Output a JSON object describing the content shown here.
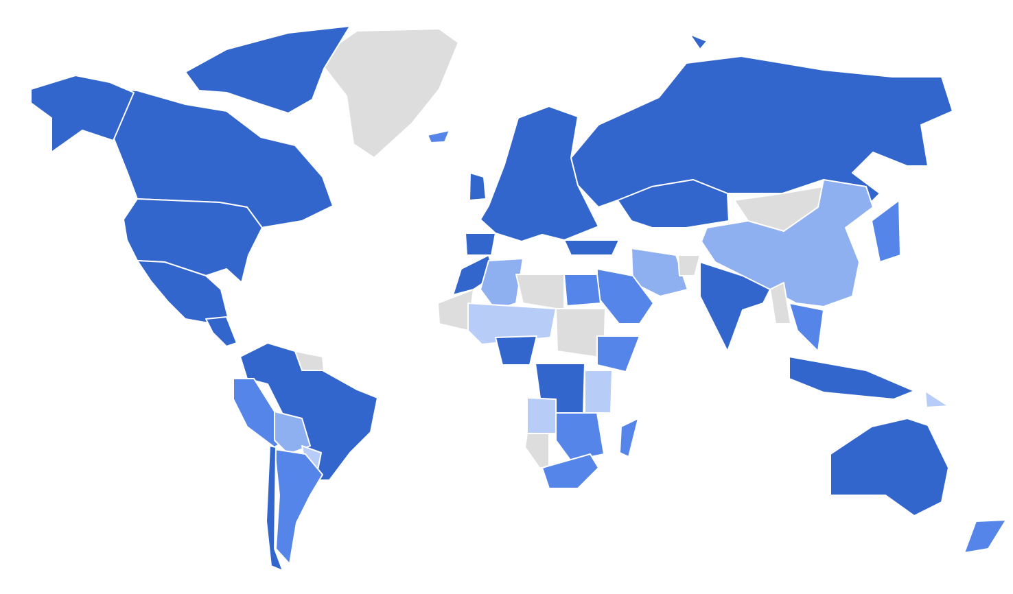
{
  "map": {
    "type": "choropleth",
    "projection": "world",
    "color_scale": {
      "darkest": "#3366cc",
      "dark": "#5585e8",
      "medium": "#8fb0f0",
      "light": "#b7cdf7",
      "no_data": "#dddddd"
    },
    "regions": [
      {
        "id": "greenland",
        "level": "no_data"
      },
      {
        "id": "canada",
        "level": "darkest"
      },
      {
        "id": "arctic-islands",
        "level": "darkest"
      },
      {
        "id": "alaska",
        "level": "darkest"
      },
      {
        "id": "usa",
        "level": "darkest"
      },
      {
        "id": "mexico",
        "level": "darkest"
      },
      {
        "id": "central-america",
        "level": "darkest"
      },
      {
        "id": "northern-south-america",
        "level": "darkest"
      },
      {
        "id": "peru",
        "level": "dark"
      },
      {
        "id": "bolivia",
        "level": "medium"
      },
      {
        "id": "paraguay",
        "level": "light"
      },
      {
        "id": "argentina",
        "level": "dark"
      },
      {
        "id": "chile",
        "level": "darkest"
      },
      {
        "id": "guianas",
        "level": "no_data"
      },
      {
        "id": "iceland",
        "level": "dark"
      },
      {
        "id": "uk",
        "level": "darkest"
      },
      {
        "id": "europe",
        "level": "darkest"
      },
      {
        "id": "spain",
        "level": "darkest"
      },
      {
        "id": "russia",
        "level": "darkest"
      },
      {
        "id": "kazakhstan",
        "level": "darkest"
      },
      {
        "id": "mongolia",
        "level": "no_data"
      },
      {
        "id": "china",
        "level": "medium"
      },
      {
        "id": "india",
        "level": "darkest"
      },
      {
        "id": "turkey",
        "level": "darkest"
      },
      {
        "id": "iran",
        "level": "medium"
      },
      {
        "id": "afghanistan",
        "level": "no_data"
      },
      {
        "id": "saudi-arabia",
        "level": "dark"
      },
      {
        "id": "morocco",
        "level": "darkest"
      },
      {
        "id": "algeria",
        "level": "medium"
      },
      {
        "id": "libya",
        "level": "no_data"
      },
      {
        "id": "egypt",
        "level": "dark"
      },
      {
        "id": "mauritania",
        "level": "no_data"
      },
      {
        "id": "sahel",
        "level": "light"
      },
      {
        "id": "sudan-chad",
        "level": "no_data"
      },
      {
        "id": "nigeria",
        "level": "darkest"
      },
      {
        "id": "ethiopia",
        "level": "dark"
      },
      {
        "id": "congo",
        "level": "darkest"
      },
      {
        "id": "east-africa",
        "level": "light"
      },
      {
        "id": "angola",
        "level": "light"
      },
      {
        "id": "namibia",
        "level": "no_data"
      },
      {
        "id": "southeast-africa",
        "level": "dark"
      },
      {
        "id": "south-africa",
        "level": "dark"
      },
      {
        "id": "madagascar",
        "level": "dark"
      },
      {
        "id": "myanmar",
        "level": "no_data"
      },
      {
        "id": "indochina",
        "level": "dark"
      },
      {
        "id": "japan",
        "level": "dark"
      },
      {
        "id": "indonesia",
        "level": "darkest"
      },
      {
        "id": "papua",
        "level": "light"
      },
      {
        "id": "australia",
        "level": "darkest"
      },
      {
        "id": "new-zealand",
        "level": "dark"
      },
      {
        "id": "svalbard",
        "level": "darkest"
      }
    ]
  }
}
